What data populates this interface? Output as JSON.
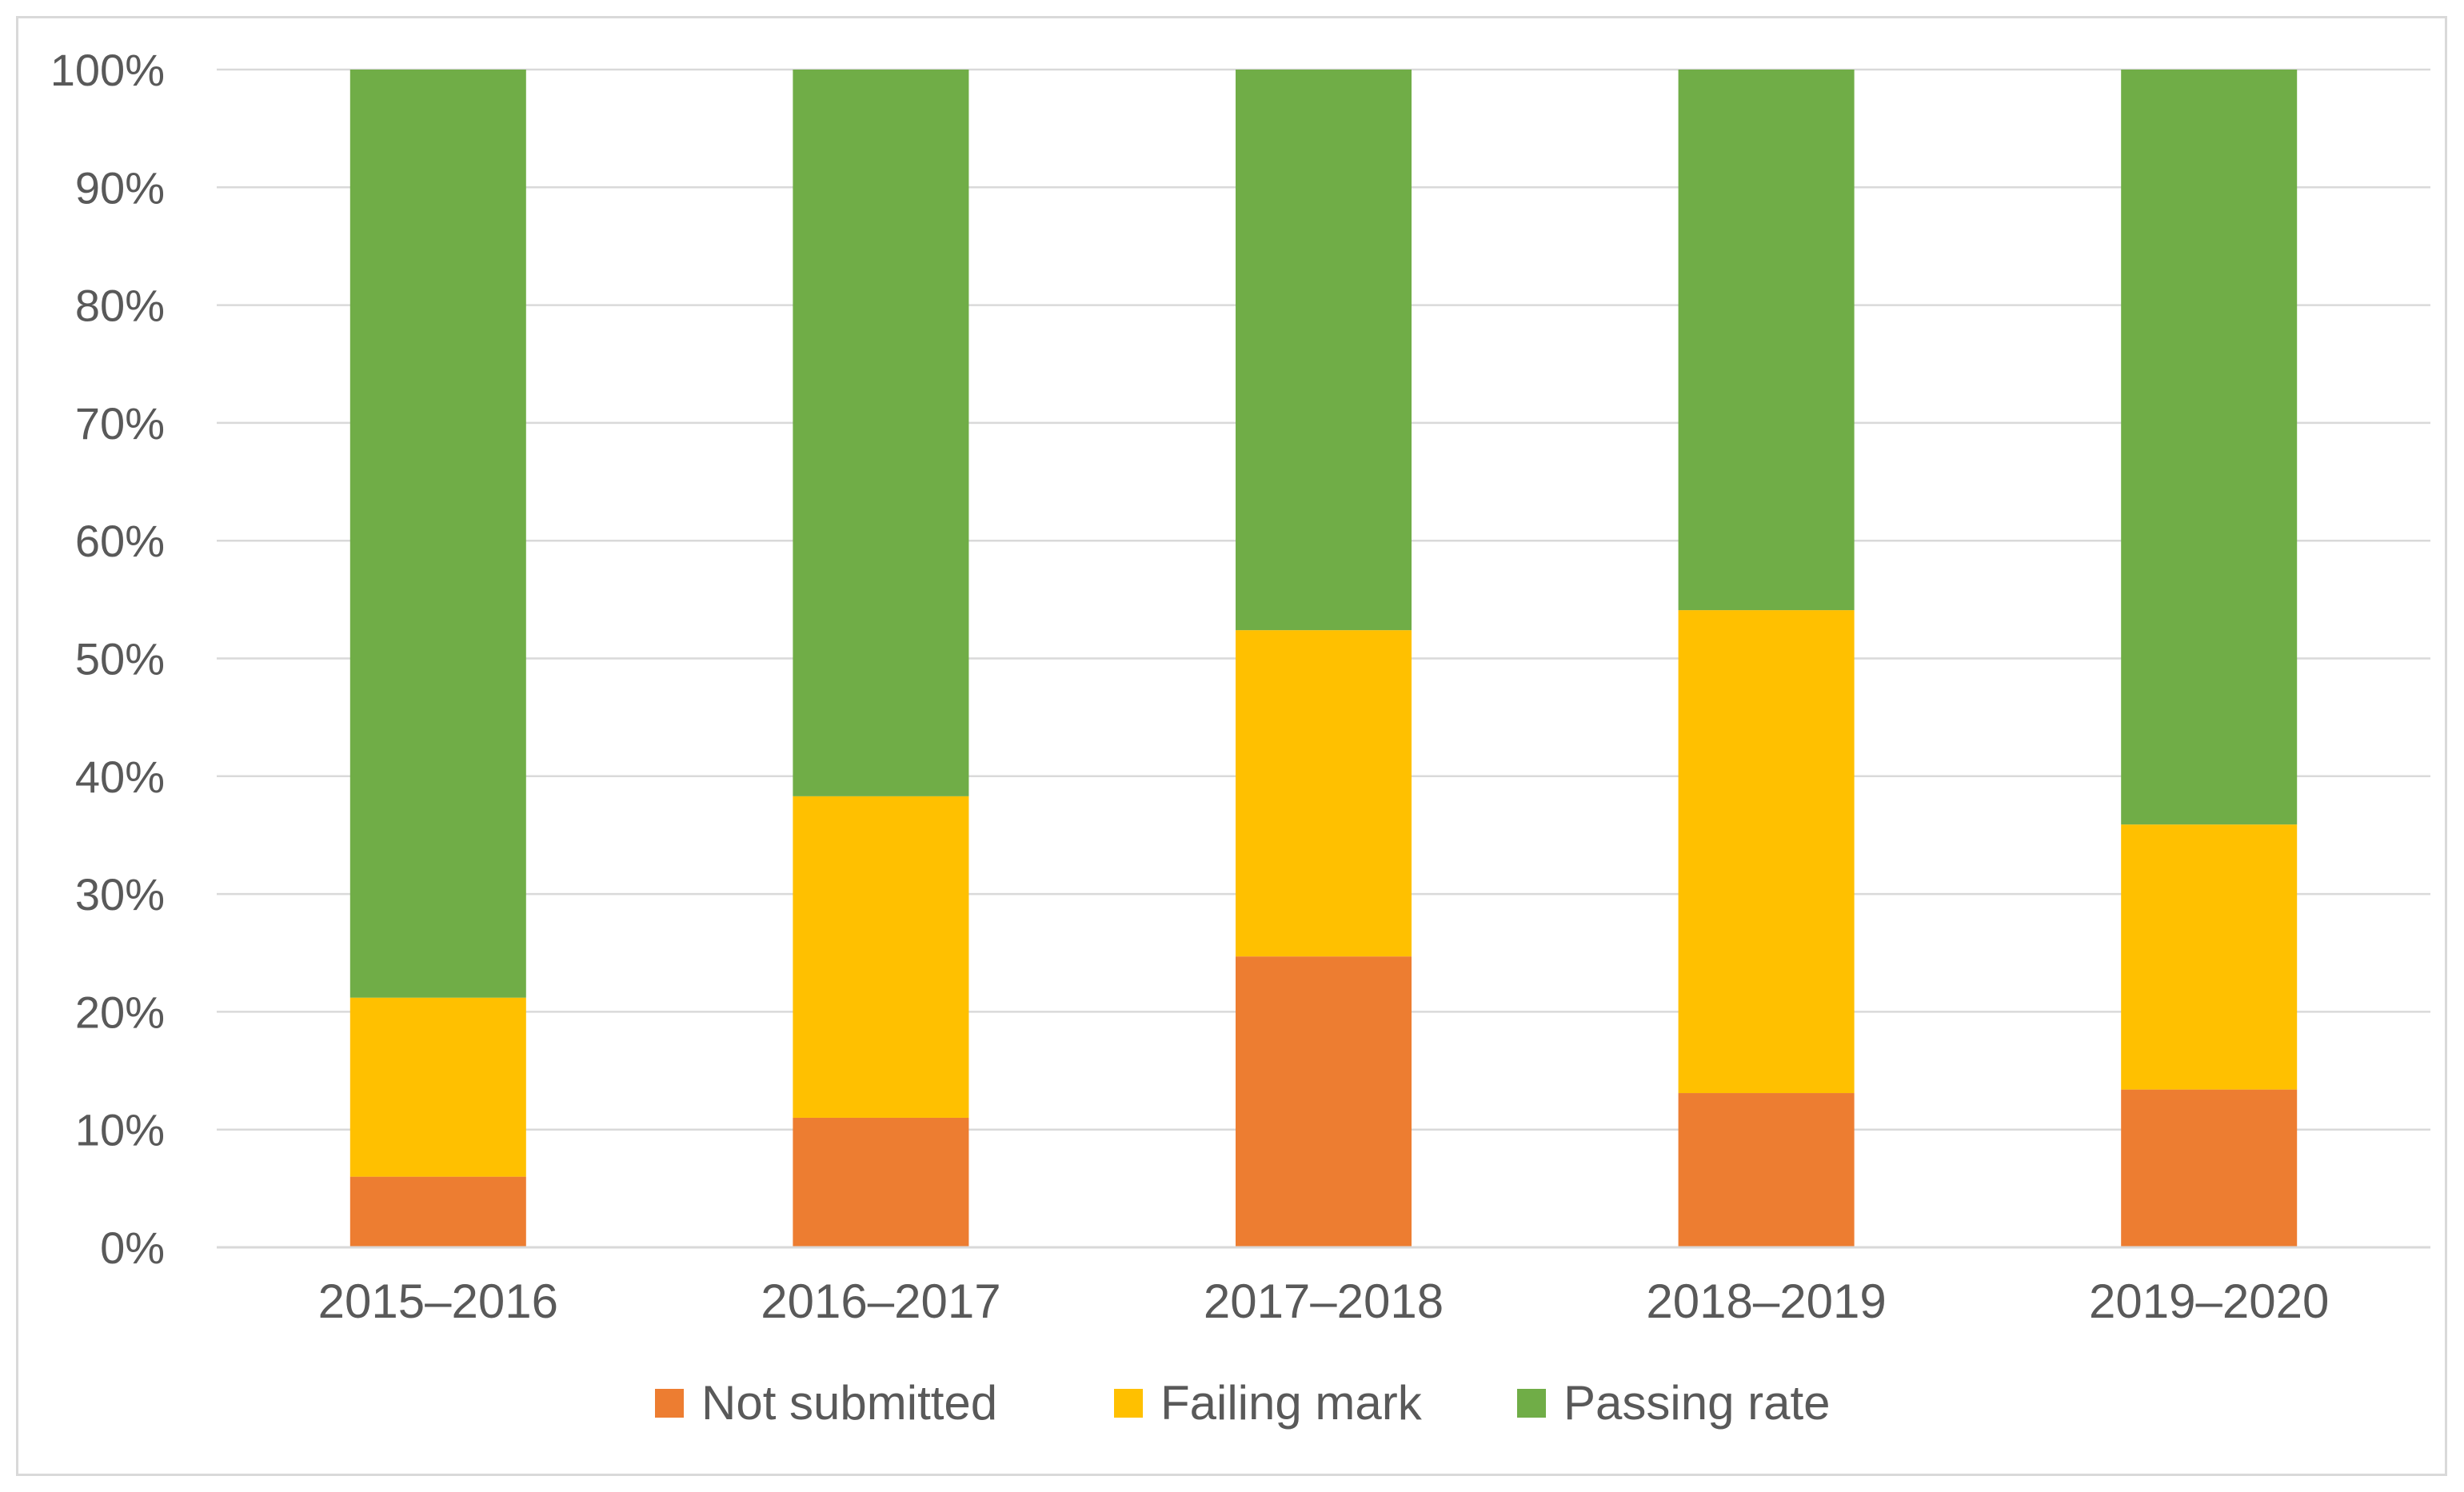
{
  "chart_data": {
    "type": "bar",
    "stacked": true,
    "title": "",
    "xlabel": "",
    "ylabel": "",
    "ylim": [
      0,
      100
    ],
    "y_ticks": [
      "0%",
      "10%",
      "20%",
      "30%",
      "40%",
      "50%",
      "60%",
      "70%",
      "80%",
      "90%",
      "100%"
    ],
    "grid": true,
    "legend_position": "bottom",
    "categories": [
      "2015–2016",
      "2016–2017",
      "2017–2018",
      "2018–2019",
      "2019–2020"
    ],
    "series": [
      {
        "name": "Not submitted",
        "color": "#ED7D31",
        "values": [
          6,
          11,
          24.7,
          13.1,
          13.4
        ]
      },
      {
        "name": "Failing mark",
        "color": "#FFC000",
        "values": [
          15.2,
          27.3,
          27.7,
          41.0,
          22.5
        ]
      },
      {
        "name": "Passing rate",
        "color": "#70AD47",
        "values": [
          78.8,
          61.7,
          47.6,
          45.9,
          64.1
        ]
      }
    ]
  }
}
